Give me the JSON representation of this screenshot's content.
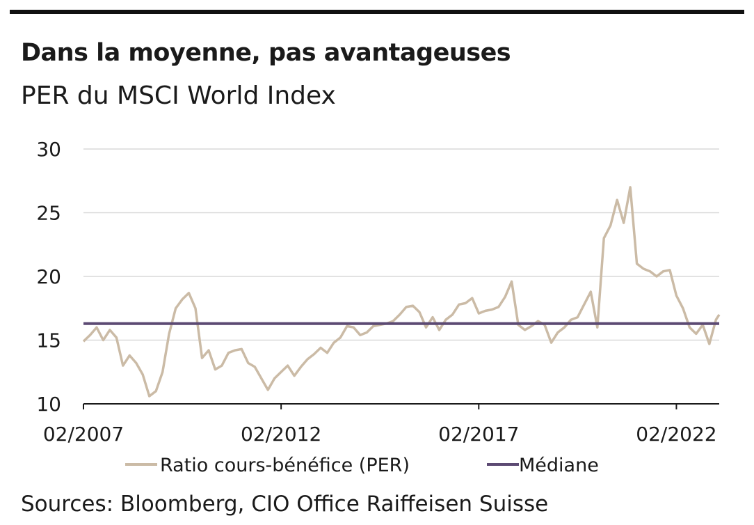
{
  "header": {
    "title": "Dans la moyenne, pas avantageuses",
    "subtitle": "PER du MSCI World Index"
  },
  "footer": {
    "source": "Sources: Bloomberg, CIO Office Raiffeisen Suisse"
  },
  "colors": {
    "per_line": "#cbbba6",
    "median_line": "#5c4a73",
    "grid": "#d9d9d9",
    "axis": "#1a1a1a",
    "top_rule": "#111111"
  },
  "chart_data": {
    "type": "line",
    "title": "Dans la moyenne, pas avantageuses",
    "subtitle": "PER du MSCI World Index",
    "xlabel": "",
    "ylabel": "",
    "ylim": [
      10,
      30
    ],
    "yticks": [
      10,
      15,
      20,
      25,
      30
    ],
    "xlim": [
      "2007-02",
      "2023-03"
    ],
    "xticks": [
      "02/2007",
      "02/2012",
      "02/2017",
      "02/2022"
    ],
    "grid": true,
    "legend_position": "bottom",
    "series": [
      {
        "name": "Ratio cours-bénéfice (PER)",
        "color": "#cbbba6",
        "x": [
          "2007-02",
          "2007-04",
          "2007-06",
          "2007-08",
          "2007-10",
          "2007-12",
          "2008-02",
          "2008-04",
          "2008-06",
          "2008-08",
          "2008-10",
          "2008-12",
          "2009-02",
          "2009-04",
          "2009-06",
          "2009-08",
          "2009-10",
          "2009-12",
          "2010-02",
          "2010-04",
          "2010-06",
          "2010-08",
          "2010-10",
          "2010-12",
          "2011-02",
          "2011-04",
          "2011-06",
          "2011-08",
          "2011-10",
          "2011-12",
          "2012-02",
          "2012-04",
          "2012-06",
          "2012-08",
          "2012-10",
          "2012-12",
          "2013-02",
          "2013-04",
          "2013-06",
          "2013-08",
          "2013-10",
          "2013-12",
          "2014-02",
          "2014-04",
          "2014-06",
          "2014-08",
          "2014-10",
          "2014-12",
          "2015-02",
          "2015-04",
          "2015-06",
          "2015-08",
          "2015-10",
          "2015-12",
          "2016-02",
          "2016-04",
          "2016-06",
          "2016-08",
          "2016-10",
          "2016-12",
          "2017-02",
          "2017-04",
          "2017-06",
          "2017-08",
          "2017-10",
          "2017-12",
          "2018-02",
          "2018-04",
          "2018-06",
          "2018-08",
          "2018-10",
          "2018-12",
          "2019-02",
          "2019-04",
          "2019-06",
          "2019-08",
          "2019-10",
          "2019-12",
          "2020-02",
          "2020-04",
          "2020-06",
          "2020-08",
          "2020-10",
          "2020-12",
          "2021-02",
          "2021-04",
          "2021-06",
          "2021-08",
          "2021-10",
          "2021-12",
          "2022-02",
          "2022-04",
          "2022-06",
          "2022-08",
          "2022-10",
          "2022-12",
          "2023-02",
          "2023-03"
        ],
        "values": [
          14.9,
          15.4,
          16.0,
          15.0,
          15.8,
          15.2,
          13.0,
          13.8,
          13.2,
          12.3,
          10.6,
          11.0,
          12.5,
          15.5,
          17.5,
          18.2,
          18.7,
          17.5,
          13.6,
          14.2,
          12.7,
          13.0,
          14.0,
          14.2,
          14.3,
          13.2,
          12.9,
          12.0,
          11.1,
          12.0,
          12.5,
          13.0,
          12.2,
          12.9,
          13.5,
          13.9,
          14.4,
          14.0,
          14.8,
          15.2,
          16.1,
          16.0,
          15.4,
          15.6,
          16.1,
          16.2,
          16.3,
          16.5,
          17.0,
          17.6,
          17.7,
          17.2,
          16.0,
          16.8,
          15.8,
          16.6,
          17.0,
          17.8,
          17.9,
          18.3,
          17.1,
          17.3,
          17.4,
          17.6,
          18.4,
          19.6,
          16.2,
          15.8,
          16.1,
          16.5,
          16.2,
          14.8,
          15.6,
          16.0,
          16.6,
          16.8,
          17.8,
          18.8,
          16.0,
          23.0,
          24.0,
          26.0,
          24.2,
          27.0,
          21.0,
          20.6,
          20.4,
          20.0,
          20.4,
          20.5,
          18.5,
          17.5,
          16.0,
          15.5,
          16.2,
          14.7,
          16.6,
          17.0
        ]
      },
      {
        "name": "Médiane",
        "color": "#5c4a73",
        "x": [
          "2007-02",
          "2023-03"
        ],
        "values": [
          16.3,
          16.3
        ]
      }
    ]
  }
}
